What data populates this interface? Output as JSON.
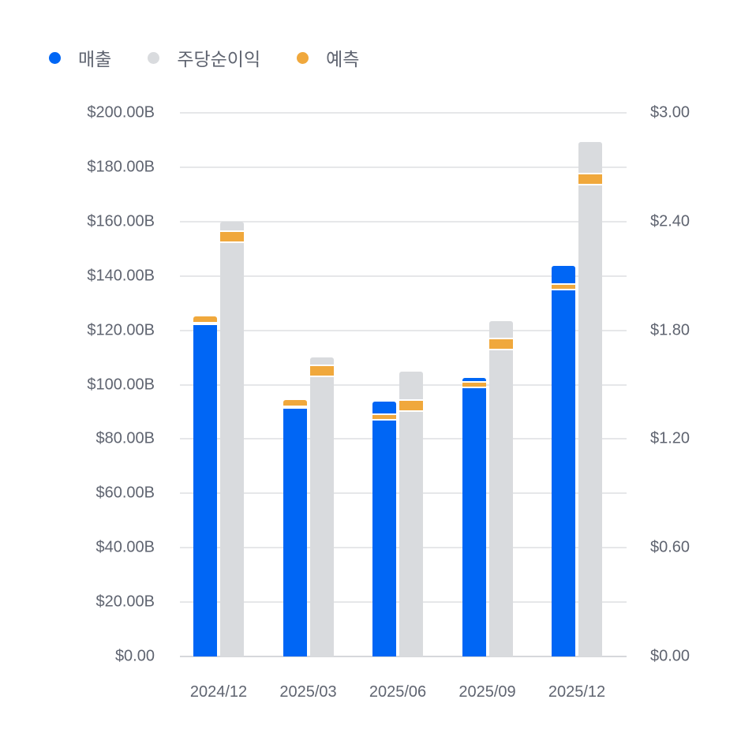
{
  "legend": [
    {
      "label": "매출",
      "color": "#0066f5"
    },
    {
      "label": "주당순이익",
      "color": "#d9dbde"
    },
    {
      "label": "예측",
      "color": "#f0a83c"
    }
  ],
  "colors": {
    "revenue": "#0066f5",
    "eps": "#d9dbde",
    "forecast": "#f0a83c",
    "grid": "#e6e7e9",
    "text": "#5f6470"
  },
  "axes": {
    "left_ticks": [
      "$0.00",
      "$20.00B",
      "$40.00B",
      "$60.00B",
      "$80.00B",
      "$100.00B",
      "$120.00B",
      "$140.00B",
      "$160.00B",
      "$180.00B",
      "$200.00B"
    ],
    "right_ticks": [
      "$0.00",
      "$0.60",
      "$1.20",
      "$1.80",
      "$2.40",
      "$3.00"
    ]
  },
  "chart_data": {
    "type": "bar",
    "title": "",
    "categories": [
      "2024/12",
      "2025/03",
      "2025/06",
      "2025/09",
      "2025/12"
    ],
    "series": [
      {
        "name": "매출",
        "axis": "left",
        "unit": "B USD",
        "values": [
          122.5,
          91.7,
          93.8,
          102.5,
          143.7
        ]
      },
      {
        "name": "매출 예측",
        "axis": "left",
        "unit": "B USD",
        "values": [
          125.1,
          94.3,
          89.4,
          101.3,
          137.3
        ]
      },
      {
        "name": "주당순이익",
        "axis": "right",
        "unit": "USD",
        "values": [
          2.4,
          1.65,
          1.57,
          1.85,
          2.84
        ]
      },
      {
        "name": "주당순이익 예측",
        "axis": "right",
        "unit": "USD",
        "values": [
          2.35,
          1.61,
          1.42,
          1.76,
          2.67
        ]
      }
    ],
    "legend": [
      "매출",
      "주당순이익",
      "예측"
    ],
    "legend_position": "top-left",
    "left_ylim": [
      0,
      200
    ],
    "right_ylim": [
      0,
      3.0
    ],
    "grid": true,
    "xlabel": "",
    "ylabel_left": "",
    "ylabel_right": ""
  }
}
